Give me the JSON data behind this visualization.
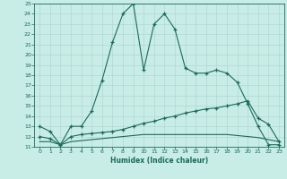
{
  "xlabel": "Humidex (Indice chaleur)",
  "xlim": [
    -0.5,
    23.5
  ],
  "ylim": [
    11,
    25
  ],
  "yticks": [
    11,
    12,
    13,
    14,
    15,
    16,
    17,
    18,
    19,
    20,
    21,
    22,
    23,
    24,
    25
  ],
  "xticks": [
    0,
    1,
    2,
    3,
    4,
    5,
    6,
    7,
    8,
    9,
    10,
    11,
    12,
    13,
    14,
    15,
    16,
    17,
    18,
    19,
    20,
    21,
    22,
    23
  ],
  "bg_color": "#c8ece6",
  "grid_color": "#aad4ce",
  "line_color": "#1a6b5a",
  "line1_x": [
    0,
    1,
    2,
    3,
    4,
    5,
    6,
    7,
    8,
    9,
    10,
    11,
    12,
    13,
    14,
    15,
    16,
    17,
    18,
    19,
    20,
    21,
    22,
    23
  ],
  "line1_y": [
    13.0,
    12.5,
    11.2,
    13.0,
    13.0,
    14.5,
    17.5,
    21.2,
    24.0,
    25.0,
    18.5,
    23.0,
    24.0,
    22.5,
    18.7,
    18.2,
    18.2,
    18.5,
    18.2,
    17.3,
    15.2,
    13.0,
    11.2,
    11.2
  ],
  "line2_x": [
    0,
    1,
    2,
    3,
    4,
    5,
    6,
    7,
    8,
    9,
    10,
    11,
    12,
    13,
    14,
    15,
    16,
    17,
    18,
    19,
    20,
    21,
    22,
    23
  ],
  "line2_y": [
    12.0,
    11.8,
    11.2,
    12.0,
    12.2,
    12.3,
    12.4,
    12.5,
    12.7,
    13.0,
    13.3,
    13.5,
    13.8,
    14.0,
    14.3,
    14.5,
    14.7,
    14.8,
    15.0,
    15.2,
    15.5,
    13.8,
    13.2,
    11.5
  ],
  "line3_x": [
    0,
    1,
    2,
    3,
    4,
    5,
    6,
    7,
    8,
    9,
    10,
    11,
    12,
    13,
    14,
    15,
    16,
    17,
    18,
    19,
    20,
    21,
    22,
    23
  ],
  "line3_y": [
    11.5,
    11.5,
    11.2,
    11.5,
    11.6,
    11.7,
    11.8,
    11.9,
    12.0,
    12.1,
    12.2,
    12.2,
    12.2,
    12.2,
    12.2,
    12.2,
    12.2,
    12.2,
    12.2,
    12.1,
    12.0,
    11.9,
    11.7,
    11.5
  ]
}
